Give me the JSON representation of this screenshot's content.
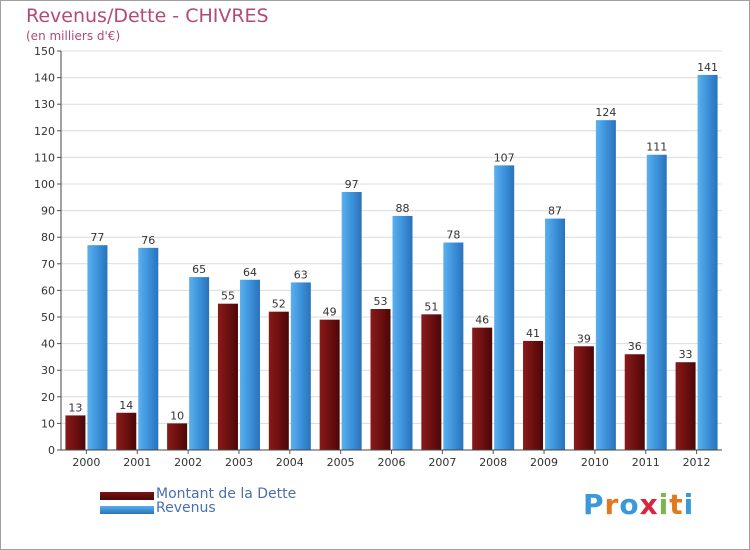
{
  "header": {
    "title": "Revenus/Dette - CHIVRES",
    "subtitle": "(en milliers d'€)"
  },
  "chart_data": {
    "type": "bar",
    "categories": [
      "2000",
      "2001",
      "2002",
      "2003",
      "2004",
      "2005",
      "2006",
      "2007",
      "2008",
      "2009",
      "2010",
      "2011",
      "2012"
    ],
    "series": [
      {
        "name": "Montant de la Dette",
        "color": "#6b0f0f",
        "values": [
          13,
          14,
          10,
          55,
          52,
          49,
          53,
          51,
          46,
          41,
          39,
          36,
          33
        ]
      },
      {
        "name": "Revenus",
        "color": "#3a8fd8",
        "values": [
          77,
          76,
          65,
          64,
          63,
          97,
          88,
          78,
          107,
          87,
          124,
          111,
          141
        ]
      }
    ],
    "title": "Revenus/Dette - CHIVRES",
    "subtitle": "(en milliers d'€)",
    "ylim": [
      0,
      150
    ],
    "yticks": [
      0,
      10,
      20,
      30,
      40,
      50,
      60,
      70,
      80,
      90,
      100,
      110,
      120,
      130,
      140,
      150
    ],
    "grid": true,
    "legend": "bottom-left"
  },
  "legend": {
    "debt_label": "Montant de la Dette",
    "revenue_label": "Revenus",
    "debt_color": "#6b0f0f",
    "revenue_color": "#3a8fd8"
  },
  "logo": {
    "letters": [
      "P",
      "r",
      "o",
      "x",
      "i",
      "t",
      "i"
    ],
    "colors": [
      "#3a9ad9",
      "#e07a1f",
      "#3a9ad9",
      "#d7263d",
      "#7ab648",
      "#e07a1f",
      "#3a9ad9"
    ]
  }
}
